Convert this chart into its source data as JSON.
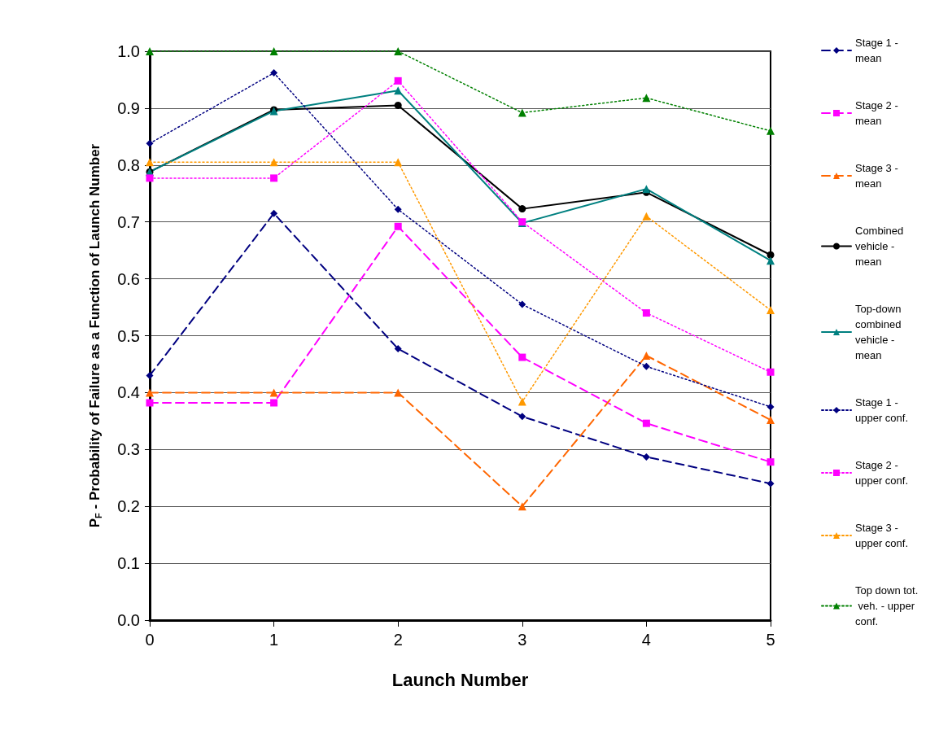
{
  "chart_data": {
    "type": "line",
    "xlabel": "Launch Number",
    "ylabel": "P$_{F}$ - Probability of Failure as a Function of Launch Number",
    "x": [
      0,
      1,
      2,
      3,
      4,
      5
    ],
    "xlim": [
      0,
      5
    ],
    "xticks": [
      0,
      1,
      2,
      3,
      4,
      5
    ],
    "ylim": [
      0,
      1
    ],
    "yticks": [
      {
        "value": 0,
        "label": "0.0"
      },
      0.1,
      0.2,
      0.3,
      0.4,
      0.5,
      0.6,
      0.7,
      0.8,
      0.9,
      {
        "value": 1,
        "label": "1.0"
      }
    ],
    "grid": "y",
    "legend": "right",
    "series": [
      {
        "name": "Stage 1 - mean",
        "color": "#000080",
        "marker": "diamond",
        "line_style": "dashed",
        "values": [
          0.43,
          0.715,
          0.477,
          0.358,
          0.287,
          0.24
        ]
      },
      {
        "name": "Stage 2 - mean",
        "color": "#ff00ff",
        "marker": "square",
        "line_style": "dashed",
        "values": [
          0.382,
          0.382,
          0.692,
          0.462,
          0.346,
          0.278
        ]
      },
      {
        "name": "Stage 3 - mean",
        "color": "#ff6600",
        "marker": "triangle",
        "line_style": "dashed",
        "values": [
          0.4,
          0.4,
          0.4,
          0.2,
          0.465,
          0.352
        ]
      },
      {
        "name": "Combined vehicle - mean",
        "color": "#000000",
        "marker": "circle",
        "line_style": "solid",
        "values": [
          0.788,
          0.897,
          0.905,
          0.723,
          0.752,
          0.642
        ]
      },
      {
        "name": "Top-down combined vehicle - mean",
        "color": "#008080",
        "marker": "triangle",
        "line_style": "solid",
        "values": [
          0.788,
          0.895,
          0.931,
          0.698,
          0.758,
          0.632
        ]
      },
      {
        "name": "Stage 1 - upper conf.",
        "color": "#000080",
        "marker": "diamond",
        "line_style": "dotted",
        "values": [
          0.838,
          0.962,
          0.722,
          0.555,
          0.446,
          0.375
        ]
      },
      {
        "name": "Stage 2 - upper conf.",
        "color": "#ff00ff",
        "marker": "square",
        "line_style": "dotted",
        "values": [
          0.777,
          0.777,
          0.948,
          0.7,
          0.54,
          0.436
        ]
      },
      {
        "name": "Stage 3 - upper conf.",
        "color": "#ff9900",
        "marker": "triangle",
        "line_style": "dotted",
        "values": [
          0.805,
          0.805,
          0.805,
          0.384,
          0.71,
          0.545
        ]
      },
      {
        "name": "Top down tot. veh. - upper conf.",
        "color": "#008000",
        "marker": "triangle",
        "line_style": "dotted",
        "values": [
          1.0,
          1.0,
          1.0,
          0.892,
          0.918,
          0.86
        ]
      }
    ]
  }
}
